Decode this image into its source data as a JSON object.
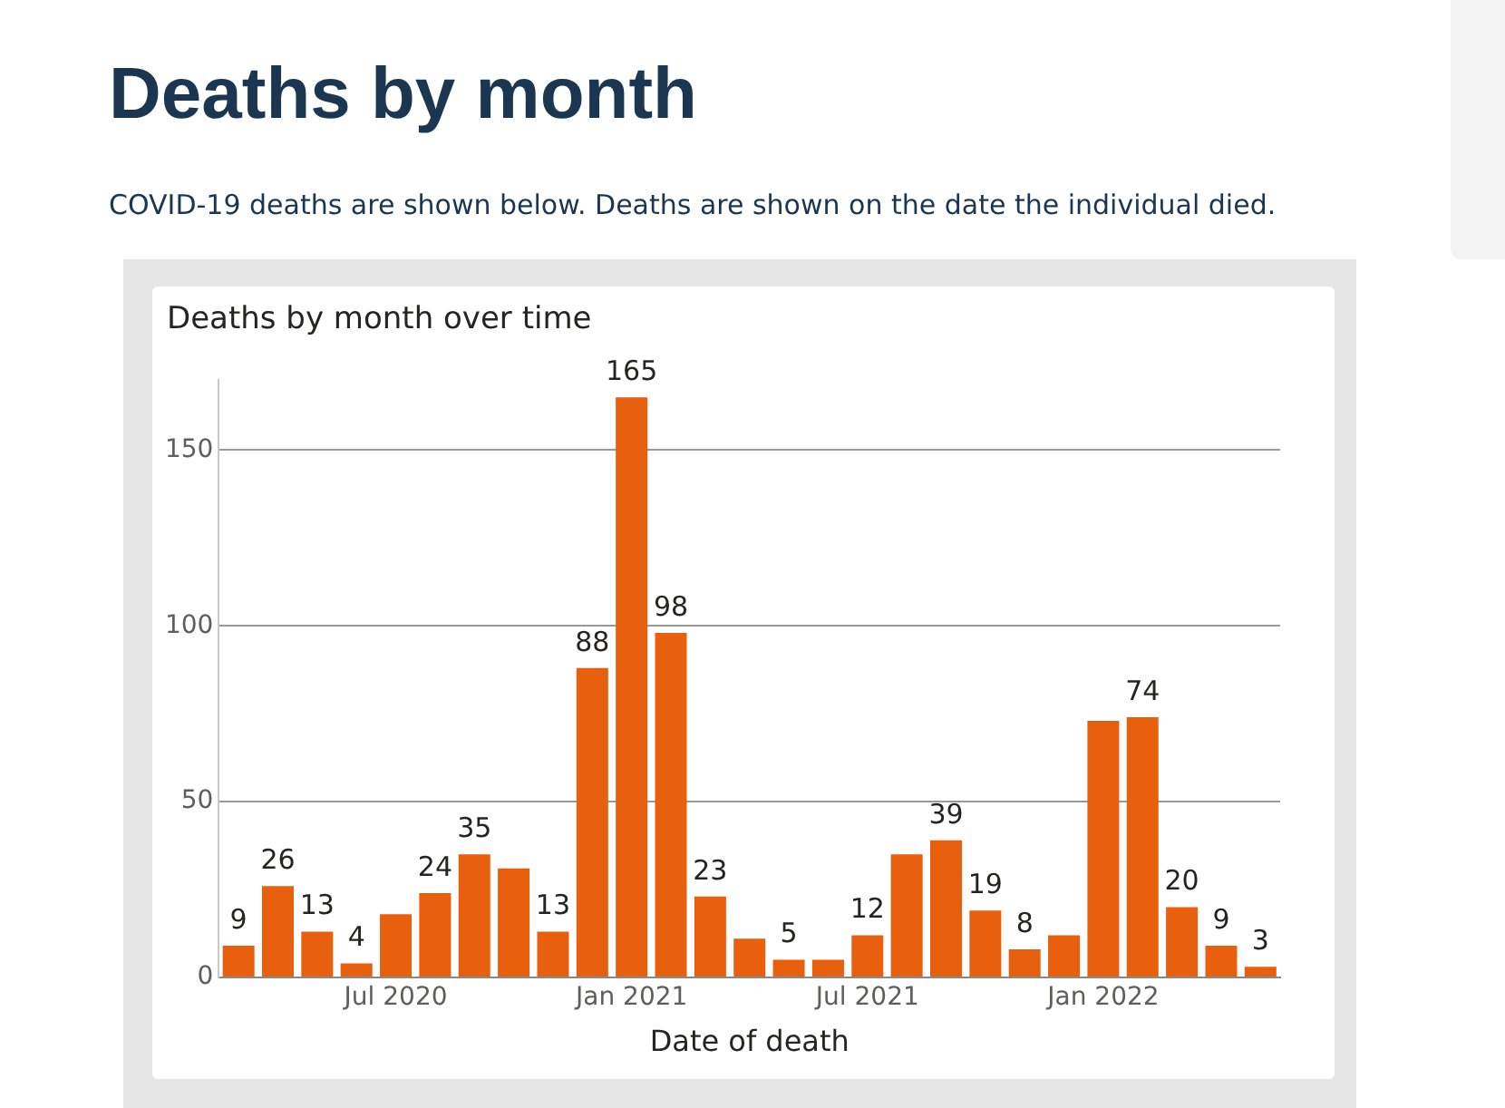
{
  "chart_data": {
    "type": "bar",
    "title": "Deaths by month",
    "subtitle": "COVID-19 deaths are shown below. Deaths are shown on the date the individual died.",
    "annotations": [
      "Deaths by month over time"
    ],
    "xlabel": "Date of death",
    "categories": [
      null,
      null,
      null,
      null,
      "Jul 2020",
      null,
      null,
      null,
      null,
      null,
      "Jan 2021",
      null,
      null,
      null,
      null,
      null,
      "Jul 2021",
      null,
      null,
      null,
      null,
      null,
      "Jan 2022",
      null,
      null,
      null,
      null
    ],
    "values": [
      9,
      26,
      13,
      4,
      18,
      24,
      35,
      31,
      13,
      88,
      165,
      98,
      23,
      11,
      5,
      5,
      12,
      35,
      39,
      19,
      8,
      12,
      73,
      74,
      20,
      9,
      3
    ],
    "value_labels": [
      "9",
      "26",
      "13",
      "4",
      null,
      "24",
      "35",
      null,
      "13",
      "88",
      "165",
      "98",
      "23",
      null,
      "5",
      null,
      "12",
      null,
      "39",
      "19",
      "8",
      null,
      null,
      "74",
      "20",
      "9",
      "3"
    ],
    "color": "#e8600e",
    "ylim": [
      0,
      170
    ],
    "yticks": [
      0,
      50,
      100,
      150
    ],
    "grid": "y"
  }
}
